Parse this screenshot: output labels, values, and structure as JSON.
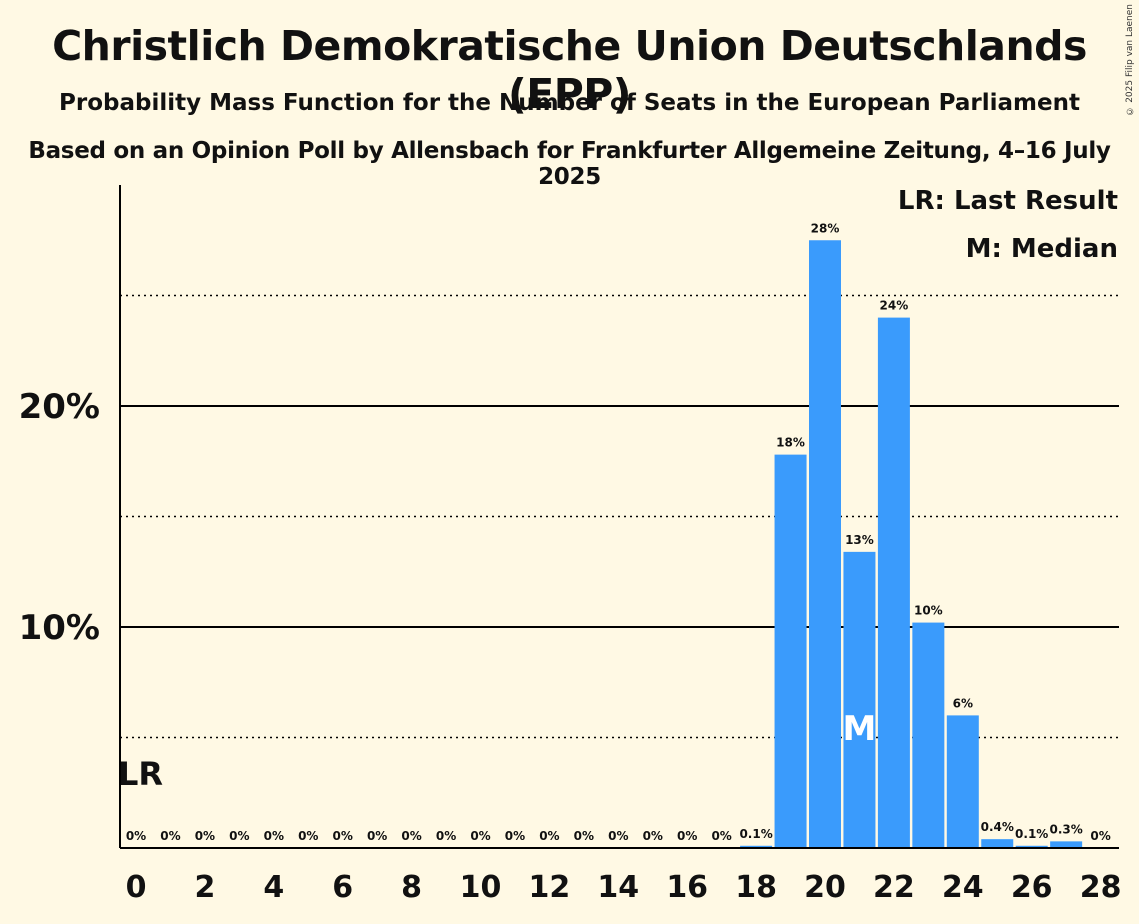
{
  "header": {
    "title": "Christlich Demokratische Union Deutschlands (EPP)",
    "subtitle": "Probability Mass Function for the Number of Seats in the European Parliament",
    "subtitle2": "Based on an Opinion Poll by Allensbach for Frankfurter Allgemeine Zeitung, 4–16 July 2025",
    "copyright": "© 2025 Filip van Laenen"
  },
  "colors": {
    "background": "#FFF9E4",
    "bar": "#3A9BFC"
  },
  "chart_data": {
    "type": "bar",
    "x": [
      0,
      1,
      2,
      3,
      4,
      5,
      6,
      7,
      8,
      9,
      10,
      11,
      12,
      13,
      14,
      15,
      16,
      17,
      18,
      19,
      20,
      21,
      22,
      23,
      24,
      25,
      26,
      27,
      28
    ],
    "values": [
      0,
      0,
      0,
      0,
      0,
      0,
      0,
      0,
      0,
      0,
      0,
      0,
      0,
      0,
      0,
      0,
      0,
      0,
      0.1,
      17.8,
      27.5,
      13.4,
      24.0,
      10.2,
      6.0,
      0.4,
      0.1,
      0.3,
      0
    ],
    "labels": [
      "0%",
      "0%",
      "0%",
      "0%",
      "0%",
      "0%",
      "0%",
      "0%",
      "0%",
      "0%",
      "0%",
      "0%",
      "0%",
      "0%",
      "0%",
      "0%",
      "0%",
      "0%",
      "0.1%",
      "18%",
      "28%",
      "13%",
      "24%",
      "10%",
      "6%",
      "0.4%",
      "0.1%",
      "0.3%",
      "0%"
    ],
    "x_tick_labels": [
      "0",
      "2",
      "4",
      "6",
      "8",
      "10",
      "12",
      "14",
      "16",
      "18",
      "20",
      "22",
      "24",
      "26",
      "28"
    ],
    "y_tick_labels": [
      "10%",
      "20%"
    ],
    "ylim": [
      0,
      30
    ],
    "gridlines_solid": [
      10,
      20
    ],
    "gridlines_dotted": [
      5,
      15,
      25
    ],
    "last_result": 0,
    "last_result_marker": "LR",
    "median": 21,
    "median_marker": "M",
    "legend": [
      "LR: Last Result",
      "M: Median"
    ],
    "legend_position": "top-right"
  }
}
